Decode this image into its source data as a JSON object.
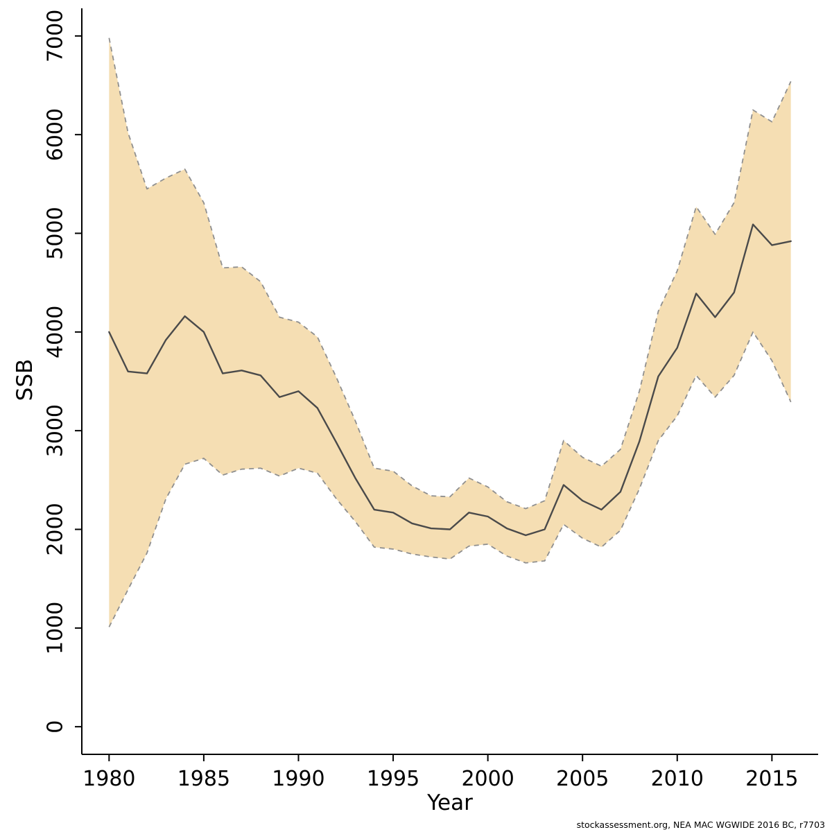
{
  "figure": {
    "background": "#ffffff",
    "caption": "stockassessment.org, NEA MAC WGWIDE 2016 BC, r7703"
  },
  "chart_data": {
    "type": "line",
    "title": "",
    "xlabel": "Year",
    "ylabel": "SSB",
    "x": [
      1980,
      1981,
      1982,
      1983,
      1984,
      1985,
      1986,
      1987,
      1988,
      1989,
      1990,
      1991,
      1992,
      1993,
      1994,
      1995,
      1996,
      1997,
      1998,
      1999,
      2000,
      2001,
      2002,
      2003,
      2004,
      2005,
      2006,
      2007,
      2008,
      2009,
      2010,
      2011,
      2012,
      2013,
      2014,
      2015,
      2016
    ],
    "series": [
      {
        "name": "SSB estimate",
        "role": "estimate",
        "line_style": "solid",
        "color": "#4a4a4a",
        "values": [
          4000,
          3600,
          3580,
          3920,
          4160,
          4000,
          3580,
          3610,
          3560,
          3340,
          3400,
          3230,
          2880,
          2520,
          2200,
          2170,
          2060,
          2010,
          2000,
          2170,
          2130,
          2010,
          1940,
          2000,
          2450,
          2290,
          2200,
          2380,
          2890,
          3550,
          3840,
          4390,
          4150,
          4400,
          5090,
          4880,
          4920
        ]
      },
      {
        "name": "lower confidence bound",
        "role": "lower",
        "line_style": "dashed",
        "color": "#8f8f8f",
        "values": [
          1010,
          1390,
          1760,
          2310,
          2660,
          2720,
          2550,
          2610,
          2620,
          2540,
          2620,
          2570,
          2310,
          2080,
          1820,
          1800,
          1750,
          1720,
          1700,
          1830,
          1850,
          1730,
          1660,
          1680,
          2050,
          1910,
          1820,
          1990,
          2410,
          2900,
          3150,
          3560,
          3340,
          3560,
          4000,
          3710,
          3290
        ]
      },
      {
        "name": "upper confidence bound",
        "role": "upper",
        "line_style": "dashed",
        "color": "#8f8f8f",
        "values": [
          6980,
          6020,
          5450,
          5560,
          5650,
          5310,
          4650,
          4660,
          4510,
          4150,
          4100,
          3950,
          3540,
          3100,
          2620,
          2590,
          2440,
          2340,
          2330,
          2520,
          2430,
          2280,
          2210,
          2290,
          2900,
          2730,
          2640,
          2810,
          3400,
          4210,
          4620,
          5270,
          4990,
          5310,
          6250,
          6130,
          6540
        ]
      }
    ],
    "band_fill": "#f5deb3",
    "xlim": [
      1980,
      2016
    ],
    "ylim": [
      0,
      7000
    ],
    "xticks": [
      1980,
      1985,
      1990,
      1995,
      2000,
      2005,
      2010,
      2015
    ],
    "yticks": [
      0,
      1000,
      2000,
      3000,
      4000,
      5000,
      6000,
      7000
    ],
    "grid": false,
    "legend_position": "none",
    "axis_color": "#000000"
  }
}
